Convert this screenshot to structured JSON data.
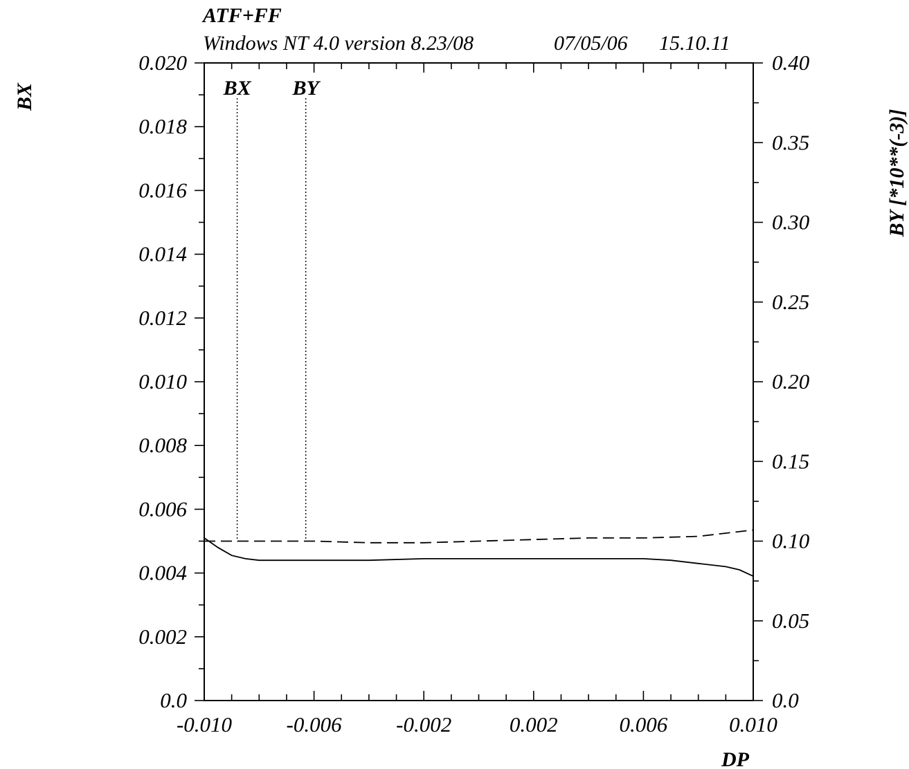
{
  "chart_data": {
    "type": "line",
    "title": "ATF+FF",
    "subtitle": "Windows NT 4.0 version 8.23/08",
    "date": "07/05/06",
    "time": "15.10.11",
    "xlabel": "DP",
    "ylabel_left": "BX",
    "ylabel_right": "BY  [*10**(-3)]",
    "xlim": [
      -0.01,
      0.01
    ],
    "ylim_left": [
      0.0,
      0.02
    ],
    "ylim_right": [
      0.0,
      0.4
    ],
    "x_ticks": [
      -0.01,
      -0.006,
      -0.002,
      0.002,
      0.006,
      0.01
    ],
    "x_tick_labels": [
      "-0.010",
      "-0.006",
      "-0.002",
      "0.002",
      "0.006",
      "0.010"
    ],
    "y_left_ticks": [
      0.0,
      0.002,
      0.004,
      0.006,
      0.008,
      0.01,
      0.012,
      0.014,
      0.016,
      0.018,
      0.02
    ],
    "y_left_tick_labels": [
      "0.0",
      "0.002",
      "0.004",
      "0.006",
      "0.008",
      "0.010",
      "0.012",
      "0.014",
      "0.016",
      "0.018",
      "0.020"
    ],
    "y_right_ticks": [
      0.0,
      0.05,
      0.1,
      0.15,
      0.2,
      0.25,
      0.3,
      0.35,
      0.4
    ],
    "y_right_tick_labels": [
      "0.0",
      "0.05",
      "0.10",
      "0.15",
      "0.20",
      "0.25",
      "0.30",
      "0.35",
      "0.40"
    ],
    "grid": false,
    "markers": [
      {
        "label": "BX",
        "x": -0.0088
      },
      {
        "label": "BY",
        "x": -0.0063
      }
    ],
    "series": [
      {
        "name": "BX",
        "axis": "left",
        "style": "solid",
        "x": [
          -0.01,
          -0.0095,
          -0.009,
          -0.0085,
          -0.008,
          -0.007,
          -0.006,
          -0.004,
          -0.002,
          0.0,
          0.002,
          0.004,
          0.006,
          0.007,
          0.008,
          0.009,
          0.0095,
          0.01
        ],
        "y": [
          0.0051,
          0.0048,
          0.00455,
          0.00445,
          0.0044,
          0.0044,
          0.0044,
          0.0044,
          0.00445,
          0.00445,
          0.00445,
          0.00445,
          0.00445,
          0.0044,
          0.0043,
          0.0042,
          0.0041,
          0.0039
        ]
      },
      {
        "name": "BY",
        "axis": "right",
        "style": "dashed",
        "x": [
          -0.01,
          -0.008,
          -0.006,
          -0.004,
          -0.002,
          0.0,
          0.002,
          0.004,
          0.006,
          0.008,
          0.009,
          0.01
        ],
        "y": [
          0.1,
          0.1,
          0.1,
          0.099,
          0.099,
          0.1,
          0.101,
          0.102,
          0.102,
          0.103,
          0.105,
          0.107
        ]
      }
    ]
  }
}
